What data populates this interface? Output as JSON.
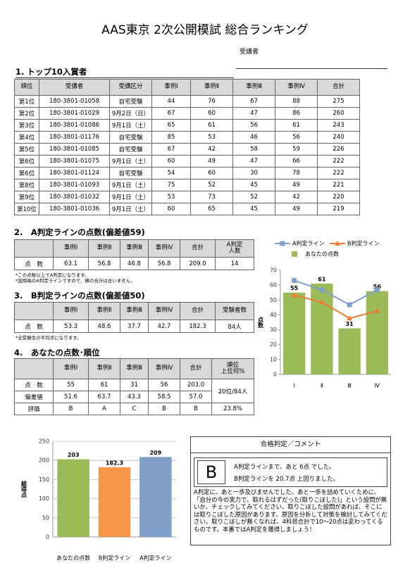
{
  "header": {
    "title": "AAS東京 2次公開模試 総合ランキング",
    "examinee_label": "受講者"
  },
  "top10": {
    "heading": "1. トップ10入賞者",
    "columns": [
      "順位",
      "受講者",
      "受講区分",
      "事例Ⅰ",
      "事例Ⅱ",
      "事例Ⅲ",
      "事例Ⅳ",
      "合計"
    ],
    "rows": [
      [
        "第1位",
        "180-3801-01058",
        "自宅受験",
        "44",
        "76",
        "67",
        "88",
        "275"
      ],
      [
        "第2位",
        "180-3801-01029",
        "9月2日（日）",
        "67",
        "60",
        "47",
        "86",
        "260"
      ],
      [
        "第3位",
        "180-3801-01086",
        "9月1日（土）",
        "65",
        "61",
        "56",
        "61",
        "243"
      ],
      [
        "第4位",
        "180-3801-01176",
        "自宅受験",
        "85",
        "53",
        "46",
        "56",
        "240"
      ],
      [
        "第5位",
        "180-3801-01085",
        "自宅受験",
        "67",
        "42",
        "58",
        "59",
        "226"
      ],
      [
        "第6位",
        "180-3801-01075",
        "9月1日（土）",
        "60",
        "49",
        "47",
        "66",
        "222"
      ],
      [
        "第6位",
        "180-3801-01124",
        "自宅受験",
        "54",
        "60",
        "30",
        "78",
        "222"
      ],
      [
        "第8位",
        "180-3801-01093",
        "9月1日（土）",
        "75",
        "52",
        "45",
        "49",
        "221"
      ],
      [
        "第9位",
        "180-3801-01032",
        "9月1日（土）",
        "53",
        "73",
        "52",
        "42",
        "220"
      ],
      [
        "第10位",
        "180-3801-01036",
        "9月1日（土）",
        "60",
        "65",
        "45",
        "49",
        "219"
      ]
    ]
  },
  "a_line": {
    "heading": "2.　A判定ラインの点数(偏差値59)",
    "columns": [
      "事例Ⅰ",
      "事例Ⅱ",
      "事例Ⅲ",
      "事例Ⅳ",
      "合計",
      "A判定\n人数"
    ],
    "row_label": "点　数",
    "values": [
      "63.1",
      "56.8",
      "46.8",
      "56.8",
      "209.0",
      "14"
    ],
    "notes": [
      "*この点数以上でA判定になります。",
      "*設問毎のA判定ラインですので、横の合計は合いません。"
    ]
  },
  "b_line": {
    "heading": "3.　B判定ラインの点数(偏差値50)",
    "columns": [
      "事例Ⅰ",
      "事例Ⅱ",
      "事例Ⅲ",
      "事例Ⅳ",
      "合計",
      "受験者数"
    ],
    "row_label": "点　数",
    "values": [
      "53.3",
      "48.6",
      "37.7",
      "42.7",
      "182.3",
      "84人"
    ],
    "notes": [
      "*全受験生の平均点になります。"
    ]
  },
  "my_scores": {
    "heading": "4.　あなたの点数･順位",
    "columns": [
      "事例Ⅰ",
      "事例Ⅱ",
      "事例Ⅲ",
      "事例Ⅳ",
      "合計",
      "順位\n上位何%"
    ],
    "rows": [
      {
        "label": "点　数",
        "values": [
          "55",
          "61",
          "31",
          "56",
          "203.0"
        ]
      },
      {
        "label": "偏差値",
        "values": [
          "51.6",
          "63.7",
          "43.3",
          "58.5",
          "57.0"
        ]
      },
      {
        "label": "評価",
        "values": [
          "B",
          "A",
          "C",
          "B",
          "B"
        ]
      }
    ],
    "rank": "20位/84人",
    "percentile": "23.8%"
  },
  "chart_data": [
    {
      "type": "combo",
      "categories": [
        "Ⅰ",
        "Ⅱ",
        "Ⅲ",
        "Ⅳ"
      ],
      "ylabel": "点数",
      "ylim": [
        0,
        70
      ],
      "yticks": [
        0,
        10,
        20,
        30,
        40,
        50,
        60,
        70
      ],
      "grid": false,
      "series": [
        {
          "name": "A判定ライン",
          "type": "line",
          "marker": "square",
          "color": "#7f9fc9",
          "values": [
            63.1,
            56.8,
            46.8,
            56.8
          ]
        },
        {
          "name": "B判定ライン",
          "type": "line",
          "marker": "triangle",
          "color": "#ec7c30",
          "values": [
            53.3,
            48.6,
            37.7,
            42.7
          ]
        },
        {
          "name": "あなたの点数",
          "type": "bar",
          "color": "#9bbb59",
          "values": [
            55,
            61,
            31,
            56
          ]
        }
      ]
    },
    {
      "type": "bar",
      "categories": [
        "あなたの点数",
        "B判定ライン",
        "A判定ライン"
      ],
      "ylabel": "総得点",
      "values": [
        203,
        182.3,
        209
      ],
      "colors": [
        "#9bbb59",
        "#f79646",
        "#7f9fc9"
      ],
      "ylim": [
        0,
        250
      ],
      "yticks": [
        0,
        50,
        100,
        150,
        200,
        250
      ],
      "grid": true
    }
  ],
  "judgment": {
    "title": "合格判定／コメント",
    "grade": "B",
    "lines": [
      "A判定ラインまで、あと 6点 でした。",
      "B判定ラインを 20.7点 上回りました。"
    ],
    "comment": "A判定に、あと一歩及びませんでした。あと一歩を詰めていくために、「自分の今の実力で、取れるはずだった(取りこぼした)」という設問が無いか、チェックしてみてください。取りこぼした設問があれば、そこには取りこぼした原因があります。原因を分析して対策を検討してみてください。取りこぼしが無くなれば、4科目合計で10～20点は変わってくるものです。本番ではA判定を獲得しましょう！"
  }
}
